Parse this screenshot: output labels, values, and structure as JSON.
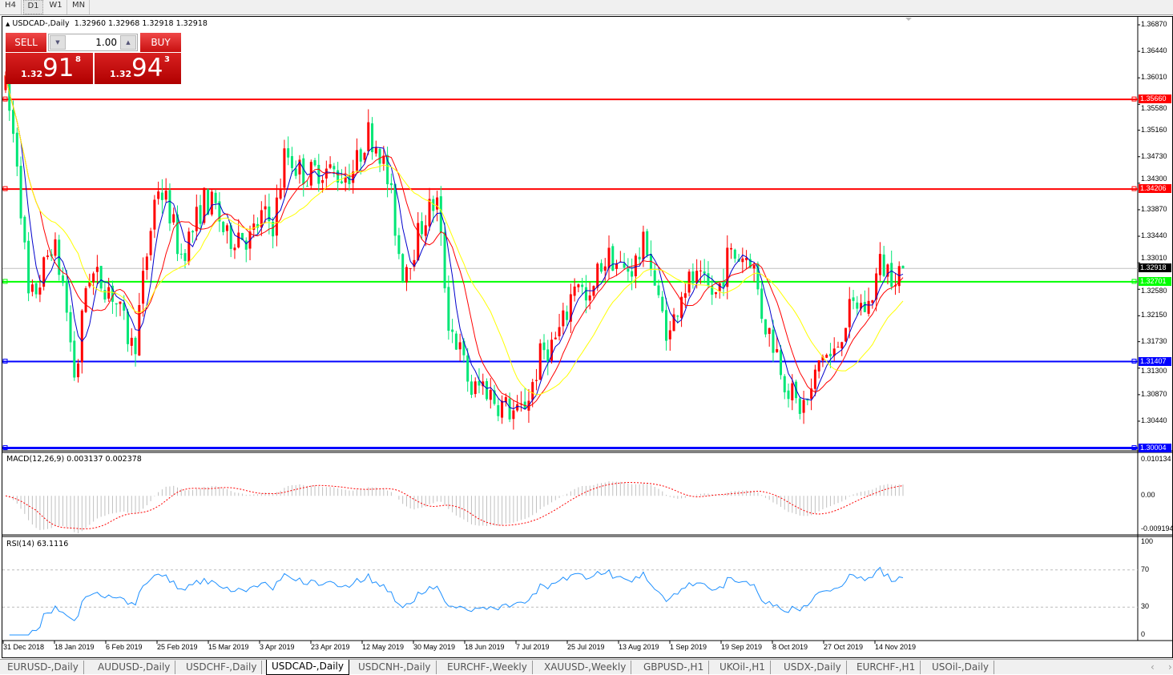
{
  "timeframes": [
    {
      "label": "H4"
    },
    {
      "label": "D1",
      "selected": true
    },
    {
      "label": "W1"
    },
    {
      "label": "MN"
    }
  ],
  "chart": {
    "header": "USDCAD-,Daily",
    "ohlc": "1.32960 1.32968 1.32918 1.32918",
    "triangle_icon": "triangle-up-icon"
  },
  "trade": {
    "sell_label": "SELL",
    "buy_label": "BUY",
    "lot": "1.00",
    "sell_small": "1.32",
    "sell_big": "91",
    "sell_sup": "8",
    "buy_small": "1.32",
    "buy_big": "94",
    "buy_sup": "3"
  },
  "price_axis": [
    "1.36870",
    "1.36440",
    "1.36010",
    "1.35580",
    "1.35160",
    "1.34730",
    "1.34300",
    "1.33870",
    "1.33440",
    "1.33010",
    "1.32580",
    "1.32150",
    "1.31730",
    "1.31300",
    "1.30870",
    "1.30440"
  ],
  "hlines": [
    {
      "price": "1.35660",
      "color": "#ff0000"
    },
    {
      "price": "1.34206",
      "color": "#ff0000"
    },
    {
      "price": "1.32701",
      "color": "#00ff00"
    },
    {
      "price": "1.31407",
      "color": "#0000ff"
    },
    {
      "price": "1.30004",
      "color": "#0000ff"
    }
  ],
  "current_price": "1.32918",
  "chart_data": {
    "type": "candlestick",
    "bullish_color": "#ff0000",
    "bearish_color": "#00e676",
    "ma_colors": [
      "#0000cc",
      "#ff0000",
      "#ffff00"
    ],
    "approx_close_path": [
      1.3584,
      1.3468,
      1.3234,
      1.3273,
      1.3338,
      1.326,
      1.3104,
      1.3286,
      1.3273,
      1.326,
      1.3208,
      1.3156,
      1.3299,
      1.3429,
      1.339,
      1.3312,
      1.3351,
      1.3403,
      1.339,
      1.3338,
      1.3351,
      1.3338,
      1.3377,
      1.3364,
      1.3481,
      1.3455,
      1.3442,
      1.3455,
      1.3448,
      1.3442,
      1.3455,
      1.3513,
      1.3493,
      1.3416,
      1.3286,
      1.3325,
      1.3377,
      1.3403,
      1.3208,
      1.3156,
      1.3091,
      1.3104,
      1.3078,
      1.3065,
      1.3052,
      1.3091,
      1.3156,
      1.3169,
      1.3208,
      1.3286,
      1.3221,
      1.3299,
      1.3312,
      1.3286,
      1.3299,
      1.3338,
      1.3234,
      1.3182,
      1.326,
      1.3273,
      1.326,
      1.3247,
      1.3312,
      1.3312,
      1.3312,
      1.3208,
      1.3169,
      1.3104,
      1.3065,
      1.3078,
      1.3156,
      1.3143,
      1.3208,
      1.3234,
      1.3227,
      1.3299,
      1.3286,
      1.32918
    ],
    "last_ohlc": [
      1.3296,
      1.32968,
      1.32918,
      1.32918
    ],
    "x_labels": [
      "31 Dec 2018",
      "18 Jan 2019",
      "6 Feb 2019",
      "25 Feb 2019",
      "15 Mar 2019",
      "3 Apr 2019",
      "23 Apr 2019",
      "12 May 2019",
      "30 May 2019",
      "18 Jun 2019",
      "7 Jul 2019",
      "25 Jul 2019",
      "13 Aug 2019",
      "1 Sep 2019",
      "19 Sep 2019",
      "8 Oct 2019",
      "27 Oct 2019",
      "14 Nov 2019"
    ]
  },
  "macd": {
    "label": "MACD(12,26,9) 0.003137 0.002378",
    "axis": [
      "0.010134",
      "0.00",
      "-0.009194"
    ],
    "max": 0.010134,
    "min": -0.009194
  },
  "rsi": {
    "label": "RSI(14) 63.1116",
    "axis": [
      "100",
      "70",
      "30",
      "0"
    ],
    "levels": [
      70,
      30
    ],
    "color": "#1e90ff"
  },
  "tabs": [
    {
      "label": "EURUSD-,Daily"
    },
    {
      "label": "AUDUSD-,Daily"
    },
    {
      "label": "USDCHF-,Daily"
    },
    {
      "label": "USDCAD-,Daily",
      "selected": true
    },
    {
      "label": "USDCNH-,Daily"
    },
    {
      "label": "EURCHF-,Weekly"
    },
    {
      "label": "XAUUSD-,Weekly"
    },
    {
      "label": "GBPUSD-,H1"
    },
    {
      "label": "UKOil-,H1"
    },
    {
      "label": "USDX-,Daily"
    },
    {
      "label": "EURCHF-,H1"
    },
    {
      "label": "USOil-,Daily"
    }
  ],
  "tab_scroll": {
    "left": "‹",
    "right": "›"
  }
}
